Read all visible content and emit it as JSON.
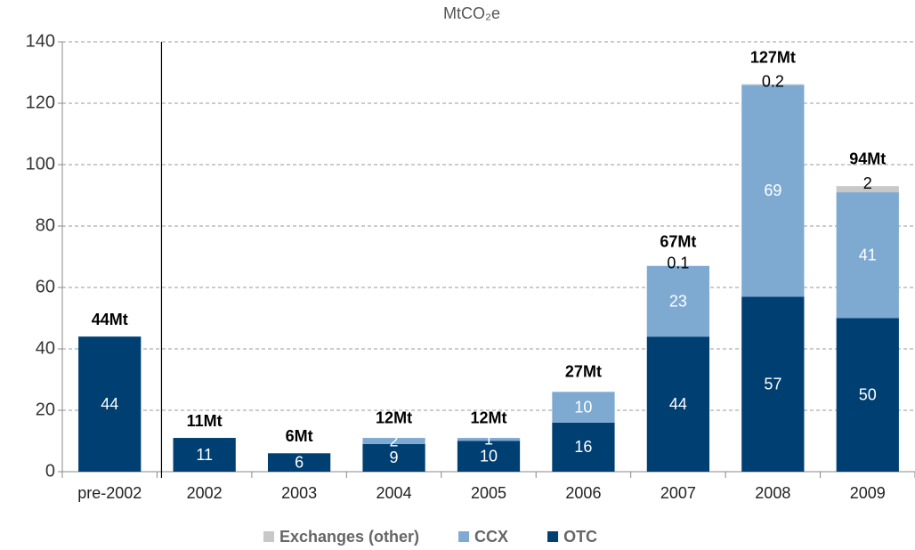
{
  "chart_data": {
    "type": "stacked_bar",
    "y_label": "MtCO₂e",
    "categories": [
      "pre-2002",
      "2002",
      "2003",
      "2004",
      "2005",
      "2006",
      "2007",
      "2008",
      "2009"
    ],
    "series": [
      {
        "name": "Exchanges (other)",
        "color": "#c8c8c8",
        "values": [
          null,
          null,
          null,
          null,
          null,
          null,
          0.1,
          0.2,
          2
        ]
      },
      {
        "name": "CCX",
        "color": "#7eaad2",
        "values": [
          null,
          null,
          null,
          2,
          1,
          10,
          23,
          69,
          41
        ]
      },
      {
        "name": "OTC",
        "color": "#003f72",
        "values": [
          44,
          11,
          6,
          9,
          10,
          16,
          44,
          57,
          50
        ]
      }
    ],
    "totals": [
      44,
      11,
      6,
      12,
      12,
      27,
      67,
      127,
      94
    ],
    "total_labels": [
      "44Mt",
      "11Mt",
      "6Mt",
      "12Mt",
      "12Mt",
      "27Mt",
      "67Mt",
      "127Mt",
      "94Mt"
    ],
    "ylim": [
      0,
      140
    ],
    "yticks": [
      0,
      20,
      40,
      60,
      80,
      100,
      120,
      140
    ],
    "grid": true,
    "legend": "bottom"
  }
}
